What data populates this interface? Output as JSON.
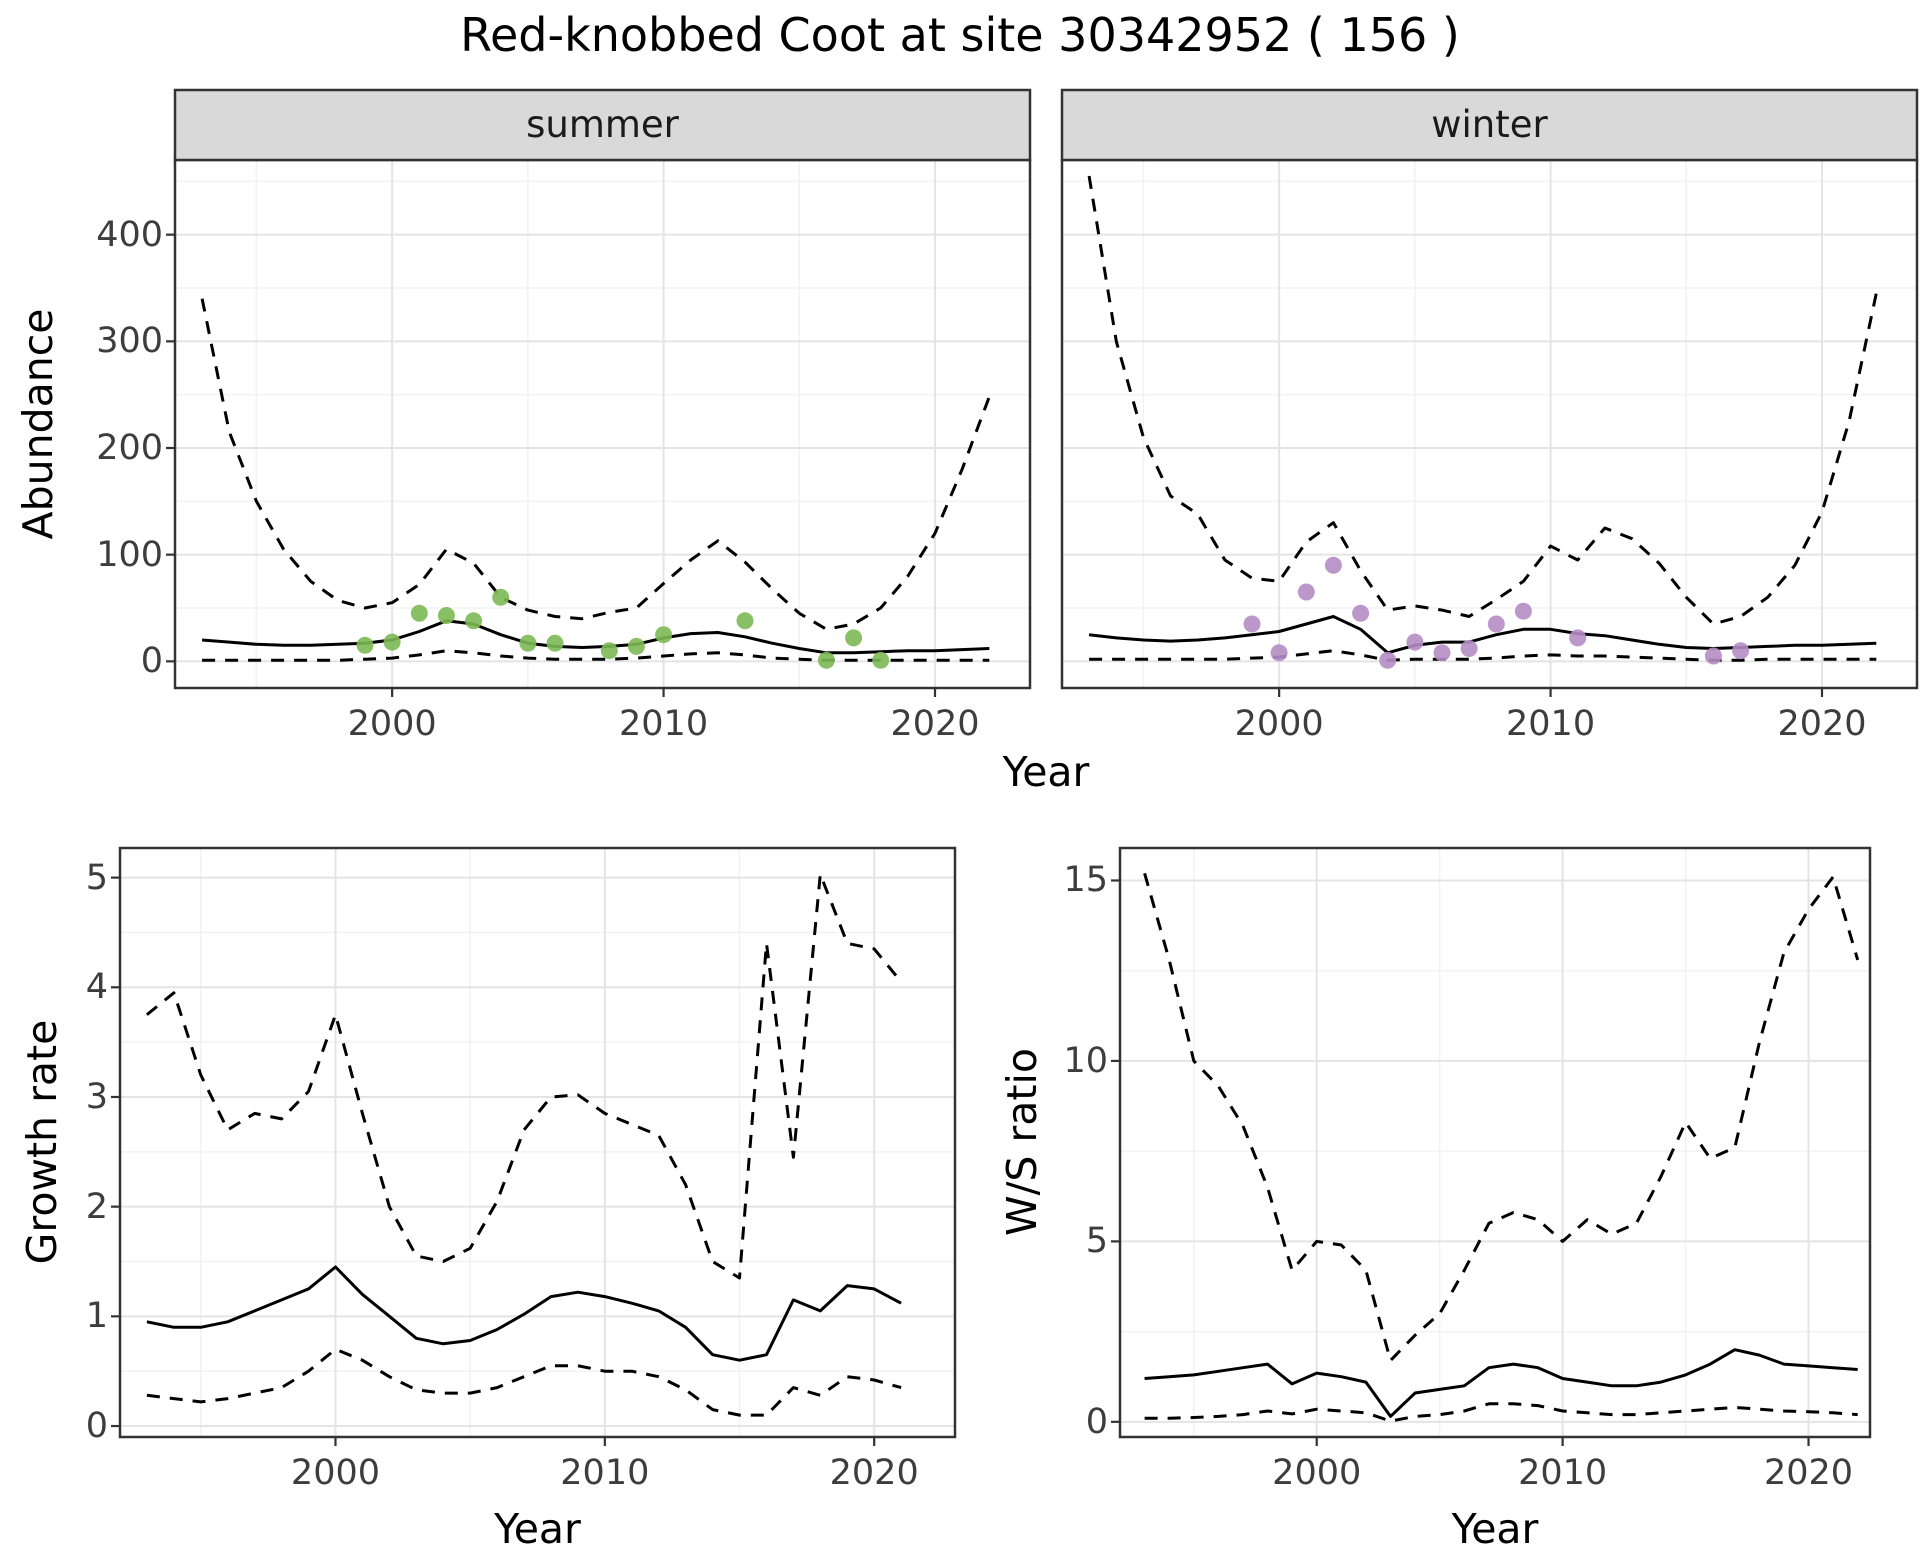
{
  "title": "Red-knobbed Coot at site 30342952 ( 156 )",
  "colors": {
    "summer_point": "#7db954",
    "winter_point": "#b48cc4",
    "line": "#000000",
    "grid_major": "#e4e4e4",
    "grid_minor": "#f2f2f2",
    "strip_bg": "#d9d9d9",
    "panel_border": "#333333",
    "tick_text": "#3d3d3d"
  },
  "chart_data": [
    {
      "type": "line",
      "title": "summer",
      "facet": "summer",
      "xlabel": "Year",
      "ylabel": "Abundance",
      "xlim": [
        1992,
        2023.5
      ],
      "ylim": [
        -25,
        470
      ],
      "xticks": [
        2000,
        2010,
        2020
      ],
      "yticks": [
        0,
        100,
        200,
        300,
        400
      ],
      "grid": "major+minor",
      "legend": "none",
      "x": [
        1993,
        1994,
        1995,
        1996,
        1997,
        1998,
        1999,
        2000,
        2001,
        2002,
        2003,
        2004,
        2005,
        2006,
        2007,
        2008,
        2009,
        2010,
        2011,
        2012,
        2013,
        2014,
        2015,
        2016,
        2017,
        2018,
        2019,
        2020,
        2021,
        2022
      ],
      "series": [
        {
          "name": "upper_ci",
          "style": "dashed",
          "values": [
            340,
            215,
            150,
            105,
            75,
            57,
            50,
            55,
            72,
            105,
            92,
            60,
            48,
            42,
            40,
            46,
            50,
            73,
            95,
            113,
            93,
            68,
            45,
            30,
            35,
            50,
            80,
            120,
            180,
            248
          ]
        },
        {
          "name": "mean",
          "style": "solid",
          "values": [
            20,
            18,
            16,
            15,
            15,
            16,
            17,
            20,
            28,
            38,
            35,
            25,
            17,
            14,
            13,
            14,
            16,
            22,
            26,
            27,
            23,
            17,
            12,
            8,
            8,
            9,
            10,
            10,
            11,
            12
          ]
        },
        {
          "name": "lower_ci",
          "style": "dashed",
          "values": [
            1,
            1,
            1,
            1,
            1,
            1,
            2,
            3,
            6,
            10,
            8,
            5,
            3,
            2,
            2,
            2,
            3,
            5,
            7,
            8,
            6,
            3,
            2,
            1,
            1,
            1,
            1,
            1,
            1,
            1
          ]
        }
      ],
      "points": {
        "name": "observed_counts",
        "color_key": "summer_point",
        "x": [
          1999,
          2000,
          2001,
          2002,
          2003,
          2004,
          2005,
          2006,
          2008,
          2009,
          2010,
          2013,
          2016,
          2017,
          2018
        ],
        "y": [
          15,
          18,
          45,
          43,
          38,
          60,
          17,
          17,
          10,
          14,
          25,
          38,
          1,
          22,
          1
        ]
      }
    },
    {
      "type": "line",
      "title": "winter",
      "facet": "winter",
      "xlabel": "Year",
      "ylabel": "Abundance",
      "xlim": [
        1992,
        2023.5
      ],
      "ylim": [
        -25,
        470
      ],
      "xticks": [
        2000,
        2010,
        2020
      ],
      "yticks": [
        0,
        100,
        200,
        300,
        400
      ],
      "grid": "major+minor",
      "legend": "none",
      "x": [
        1993,
        1994,
        1995,
        1996,
        1997,
        1998,
        1999,
        2000,
        2001,
        2002,
        2003,
        2004,
        2005,
        2006,
        2007,
        2008,
        2009,
        2010,
        2011,
        2012,
        2013,
        2014,
        2015,
        2016,
        2017,
        2018,
        2019,
        2020,
        2021,
        2022
      ],
      "series": [
        {
          "name": "upper_ci",
          "style": "dashed",
          "values": [
            455,
            300,
            210,
            155,
            138,
            95,
            78,
            75,
            112,
            130,
            85,
            48,
            52,
            48,
            42,
            58,
            75,
            108,
            95,
            125,
            115,
            92,
            60,
            35,
            42,
            60,
            90,
            140,
            225,
            345
          ]
        },
        {
          "name": "mean",
          "style": "solid",
          "values": [
            25,
            22,
            20,
            19,
            20,
            22,
            25,
            28,
            35,
            42,
            30,
            8,
            15,
            18,
            18,
            25,
            30,
            30,
            26,
            24,
            20,
            16,
            13,
            12,
            13,
            14,
            15,
            15,
            16,
            17
          ]
        },
        {
          "name": "lower_ci",
          "style": "dashed",
          "values": [
            2,
            2,
            2,
            2,
            2,
            2,
            3,
            4,
            7,
            10,
            6,
            1,
            2,
            2,
            2,
            3,
            5,
            6,
            5,
            5,
            4,
            3,
            2,
            1,
            1,
            2,
            2,
            2,
            2,
            2
          ]
        }
      ],
      "points": {
        "name": "observed_counts",
        "color_key": "winter_point",
        "x": [
          1999,
          2000,
          2001,
          2002,
          2003,
          2004,
          2005,
          2006,
          2007,
          2008,
          2009,
          2011,
          2016,
          2017
        ],
        "y": [
          35,
          8,
          65,
          90,
          45,
          1,
          18,
          8,
          12,
          35,
          47,
          22,
          5,
          10
        ]
      }
    },
    {
      "type": "line",
      "title": "",
      "xlabel": "Year",
      "ylabel": "Growth rate",
      "xlim": [
        1992,
        2023
      ],
      "ylim": [
        -0.1,
        5.27
      ],
      "xticks": [
        2000,
        2010,
        2020
      ],
      "yticks": [
        0,
        1,
        2,
        3,
        4,
        5
      ],
      "grid": "major+minor",
      "legend": "none",
      "x": [
        1993,
        1994,
        1995,
        1996,
        1997,
        1998,
        1999,
        2000,
        2001,
        2002,
        2003,
        2004,
        2005,
        2006,
        2007,
        2008,
        2009,
        2010,
        2011,
        2012,
        2013,
        2014,
        2015,
        2016,
        2017,
        2018,
        2019,
        2020,
        2021
      ],
      "series": [
        {
          "name": "upper_ci",
          "style": "dashed",
          "values": [
            3.75,
            3.95,
            3.2,
            2.7,
            2.85,
            2.8,
            3.05,
            3.75,
            2.85,
            2.0,
            1.55,
            1.5,
            1.62,
            2.05,
            2.7,
            3.0,
            3.02,
            2.85,
            2.75,
            2.65,
            2.2,
            1.5,
            1.35,
            4.4,
            2.45,
            5.03,
            4.4,
            4.35,
            4.05
          ]
        },
        {
          "name": "mean",
          "style": "solid",
          "values": [
            0.95,
            0.9,
            0.9,
            0.95,
            1.05,
            1.15,
            1.25,
            1.45,
            1.2,
            1.0,
            0.8,
            0.75,
            0.78,
            0.88,
            1.02,
            1.18,
            1.22,
            1.18,
            1.12,
            1.05,
            0.9,
            0.65,
            0.6,
            0.65,
            1.15,
            1.05,
            1.28,
            1.25,
            1.12
          ]
        },
        {
          "name": "lower_ci",
          "style": "dashed",
          "values": [
            0.28,
            0.25,
            0.22,
            0.25,
            0.3,
            0.35,
            0.5,
            0.7,
            0.6,
            0.45,
            0.33,
            0.3,
            0.3,
            0.35,
            0.45,
            0.55,
            0.55,
            0.5,
            0.5,
            0.45,
            0.33,
            0.15,
            0.1,
            0.1,
            0.35,
            0.28,
            0.45,
            0.42,
            0.35
          ]
        }
      ]
    },
    {
      "type": "line",
      "title": "",
      "xlabel": "Year",
      "ylabel": "W/S ratio",
      "xlim": [
        1992,
        2022.5
      ],
      "ylim": [
        -0.42,
        15.9
      ],
      "xticks": [
        2000,
        2010,
        2020
      ],
      "yticks": [
        0,
        5,
        10,
        15
      ],
      "grid": "major+minor",
      "legend": "none",
      "x": [
        1993,
        1994,
        1995,
        1996,
        1997,
        1998,
        1999,
        2000,
        2001,
        2002,
        2003,
        2004,
        2005,
        2006,
        2007,
        2008,
        2009,
        2010,
        2011,
        2012,
        2013,
        2014,
        2015,
        2016,
        2017,
        2018,
        2019,
        2020,
        2021,
        2022
      ],
      "series": [
        {
          "name": "upper_ci",
          "style": "dashed",
          "values": [
            15.2,
            12.8,
            10.0,
            9.3,
            8.2,
            6.5,
            4.2,
            5.0,
            4.9,
            4.2,
            1.7,
            2.4,
            3.0,
            4.2,
            5.5,
            5.8,
            5.6,
            5.0,
            5.6,
            5.2,
            5.5,
            6.8,
            8.3,
            7.3,
            7.6,
            10.5,
            13.0,
            14.2,
            15.1,
            12.8
          ]
        },
        {
          "name": "mean",
          "style": "solid",
          "values": [
            1.2,
            1.25,
            1.3,
            1.4,
            1.5,
            1.6,
            1.05,
            1.35,
            1.25,
            1.1,
            0.15,
            0.8,
            0.9,
            1.0,
            1.5,
            1.6,
            1.5,
            1.2,
            1.1,
            1.0,
            1.0,
            1.1,
            1.3,
            1.6,
            2.0,
            1.85,
            1.6,
            1.55,
            1.5,
            1.45
          ]
        },
        {
          "name": "lower_ci",
          "style": "dashed",
          "values": [
            0.1,
            0.1,
            0.12,
            0.15,
            0.2,
            0.3,
            0.22,
            0.35,
            0.3,
            0.25,
            0.02,
            0.15,
            0.2,
            0.3,
            0.5,
            0.5,
            0.45,
            0.3,
            0.25,
            0.2,
            0.2,
            0.25,
            0.3,
            0.35,
            0.4,
            0.35,
            0.3,
            0.28,
            0.25,
            0.2
          ]
        }
      ]
    }
  ]
}
